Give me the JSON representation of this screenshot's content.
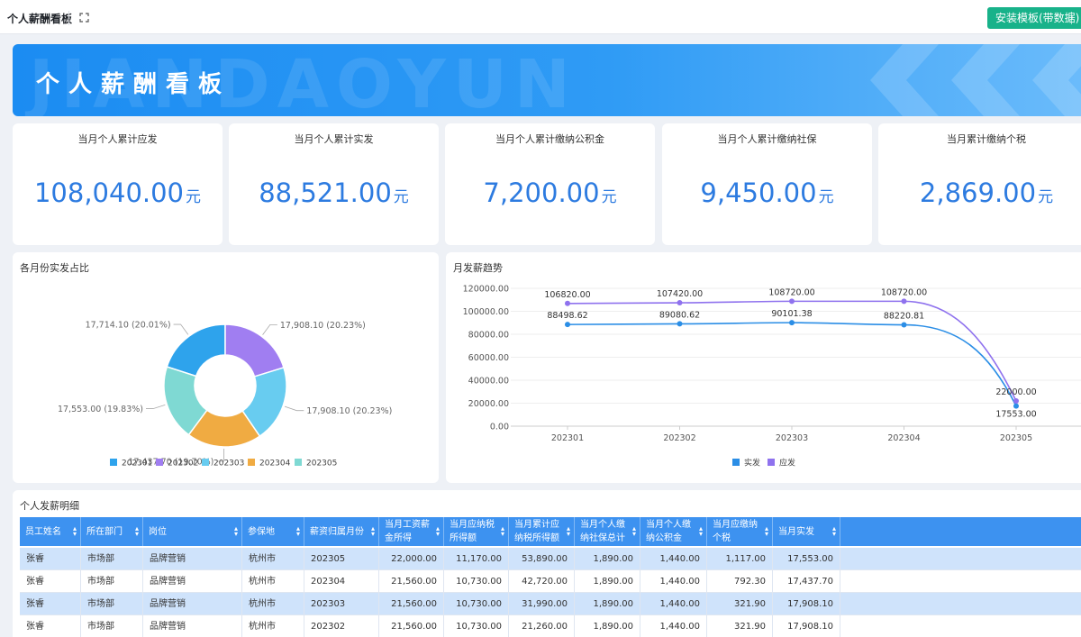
{
  "app": {
    "title": "个人薪酬看板",
    "install_button": "安装模板(带数据)"
  },
  "banner": {
    "title": "个人薪酬看板",
    "watermark": "JIANDAOYUN"
  },
  "kpis": [
    {
      "label": "当月个人累计应发",
      "value": "108,040.00",
      "unit": "元"
    },
    {
      "label": "当月个人累计实发",
      "value": "88,521.00",
      "unit": "元"
    },
    {
      "label": "当月个人累计缴纳公积金",
      "value": "7,200.00",
      "unit": "元"
    },
    {
      "label": "当月个人累计缴纳社保",
      "value": "9,450.00",
      "unit": "元"
    },
    {
      "label": "当月累计缴纳个税",
      "value": "2,869.00",
      "unit": "元"
    }
  ],
  "colors": {
    "accent": "#2d7be0",
    "banner": "#1b8cf2",
    "install": "#18b28a",
    "table_header": "#3d92f0",
    "line_actual": "#2b8ee6",
    "line_due": "#8f72ee"
  },
  "chart_data": [
    {
      "type": "pie",
      "title": "各月份实发占比",
      "categories": [
        "202301",
        "202302",
        "202303",
        "202304",
        "202305"
      ],
      "values": [
        17714.1,
        17908.1,
        17908.1,
        17437.7,
        17553.0
      ],
      "labels": [
        "17,714.10 (20.01%)",
        "17,908.10 (20.23%)",
        "17,908.10 (20.23%)",
        "17,437.70 (19.70%)",
        "17,553.00 (19.83%)"
      ],
      "colors": [
        "#2ea3ec",
        "#a07ef1",
        "#68ccf0",
        "#f0ab42",
        "#7fd9d3"
      ],
      "legend": "bottom"
    },
    {
      "type": "line",
      "title": "月发薪趋势",
      "categories": [
        "202301",
        "202302",
        "202303",
        "202304",
        "202305"
      ],
      "series": [
        {
          "name": "实发",
          "values": [
            88498.62,
            89080.62,
            90101.38,
            88220.81,
            17553.0
          ],
          "labels": [
            "88498.62",
            "89080.62",
            "90101.38",
            "88220.81",
            "17553.00"
          ],
          "color": "#2b8ee6"
        },
        {
          "name": "应发",
          "values": [
            106820.0,
            107420.0,
            108720.0,
            108720.0,
            22000.0
          ],
          "labels": [
            "106820.00",
            "107420.00",
            "108720.00",
            "108720.00",
            "22000.00"
          ],
          "color": "#8f72ee"
        }
      ],
      "y_ticks": [
        "0.00",
        "20000.00",
        "40000.00",
        "60000.00",
        "80000.00",
        "100000.00",
        "120000.00"
      ],
      "ylim": [
        0,
        120000
      ],
      "grid": true,
      "legend": "bottom"
    }
  ],
  "table": {
    "title": "个人发薪明细",
    "columns": [
      {
        "label": "员工姓名"
      },
      {
        "label": "所在部门"
      },
      {
        "label": "岗位"
      },
      {
        "label": "参保地"
      },
      {
        "label": "薪资归属月份"
      },
      {
        "label": "当月工资薪金所得"
      },
      {
        "label": "当月应纳税所得额"
      },
      {
        "label": "当月累计应纳税所得额"
      },
      {
        "label": "当月个人缴纳社保总计"
      },
      {
        "label": "当月个人缴纳公积金"
      },
      {
        "label": "当月应缴纳个税"
      },
      {
        "label": "当月实发"
      }
    ],
    "rows": [
      [
        "张睿",
        "市场部",
        "品牌营销",
        "杭州市",
        "202305",
        "22,000.00",
        "11,170.00",
        "53,890.00",
        "1,890.00",
        "1,440.00",
        "1,117.00",
        "17,553.00"
      ],
      [
        "张睿",
        "市场部",
        "品牌营销",
        "杭州市",
        "202304",
        "21,560.00",
        "10,730.00",
        "42,720.00",
        "1,890.00",
        "1,440.00",
        "792.30",
        "17,437.70"
      ],
      [
        "张睿",
        "市场部",
        "品牌营销",
        "杭州市",
        "202303",
        "21,560.00",
        "10,730.00",
        "31,990.00",
        "1,890.00",
        "1,440.00",
        "321.90",
        "17,908.10"
      ],
      [
        "张睿",
        "市场部",
        "品牌营销",
        "杭州市",
        "202302",
        "21,560.00",
        "10,730.00",
        "21,260.00",
        "1,890.00",
        "1,440.00",
        "321.90",
        "17,908.10"
      ]
    ]
  }
}
